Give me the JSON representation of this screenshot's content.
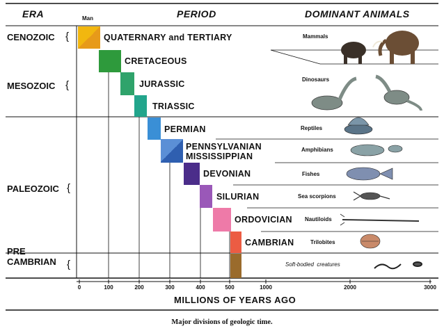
{
  "headers": {
    "era": "ERA",
    "man": "Man",
    "period": "PERIOD",
    "animals": "DOMINANT ANIMALS"
  },
  "eras": [
    {
      "label": "CENOZOIC"
    },
    {
      "label": "MESOZOIC"
    },
    {
      "label": "PALEOZOIC"
    },
    {
      "label": "PRE\nCAMBRIAN"
    }
  ],
  "periods": [
    {
      "label": "QUATERNARY and TERTIARY",
      "color": "#f2b70f"
    },
    {
      "label": "CRETACEOUS",
      "color": "#2e9a3c"
    },
    {
      "label": "JURASSIC",
      "color": "#2fa36b"
    },
    {
      "label": "TRIASSIC",
      "color": "#22a58c"
    },
    {
      "label": "PERMIAN",
      "color": "#3a8fd6"
    },
    {
      "label": "PENNSYLVANIAN\nMISSISSIPPIAN",
      "color": "#2f6fc1"
    },
    {
      "label": "DEVONIAN",
      "color": "#4b2d8a"
    },
    {
      "label": "SILURIAN",
      "color": "#9a58b8"
    },
    {
      "label": "ORDOVICIAN",
      "color": "#ee7aa8"
    },
    {
      "label": "CAMBRIAN",
      "color": "#ec5c43"
    }
  ],
  "animals": [
    {
      "label": "Mammals",
      "icon": "mammoth-icon"
    },
    {
      "label": "Dinosaurs",
      "icon": "dinosaur-icon"
    },
    {
      "label": "Reptiles",
      "icon": "reptile-icon"
    },
    {
      "label": "Amphibians",
      "icon": "amphibian-icon"
    },
    {
      "label": "Fishes",
      "icon": "fish-icon"
    },
    {
      "label": "Sea scorpions",
      "icon": "sea-scorpion-icon"
    },
    {
      "label": "Nautiloids",
      "icon": "nautiloid-icon"
    },
    {
      "label": "Trilobites",
      "icon": "trilobite-icon"
    },
    {
      "label": "Soft-bodied  creatures",
      "icon": "worm-icon"
    }
  ],
  "axis": {
    "ticks": [
      "0",
      "100",
      "200",
      "300",
      "400",
      "500",
      "1000",
      "2000",
      "3000"
    ],
    "title": "MILLIONS OF YEARS AGO"
  },
  "precambrian_color": "#9a6b2c",
  "caption": "Major divisions of geologic time."
}
